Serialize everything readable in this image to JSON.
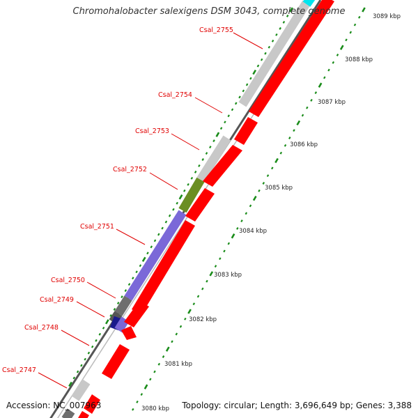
{
  "title": "Chromohalobacter salexigens DSM 3043, complete genome",
  "accession": "Accession: NC_007963",
  "summary": "Topology: circular; Length: 3,696,649 bp; Genes: 3,388",
  "colors": {
    "forward_gene": "#ff0000",
    "gray_gene": "#c8c8c8",
    "dark_gene": "#6e6e6e",
    "purple_gene": "#7b68d8",
    "green_gene": "#6b8e23",
    "navy_gene": "#1a1a8c",
    "cyan_gene": "#00e5ee",
    "label": "#e00000",
    "tick": "#1a8c1a"
  },
  "gene_labels": [
    "Csal_2755",
    "Csal_2754",
    "Csal_2753",
    "Csal_2752",
    "Csal_2751",
    "Csal_2750",
    "Csal_2749",
    "Csal_2748",
    "Csal_2747"
  ],
  "kbp_ticks": [
    "3089 kbp",
    "3088 kbp",
    "3087 kbp",
    "3086 kbp",
    "3085 kbp",
    "3084 kbp",
    "3083 kbp",
    "3082 kbp",
    "3081 kbp",
    "3080 kbp"
  ]
}
